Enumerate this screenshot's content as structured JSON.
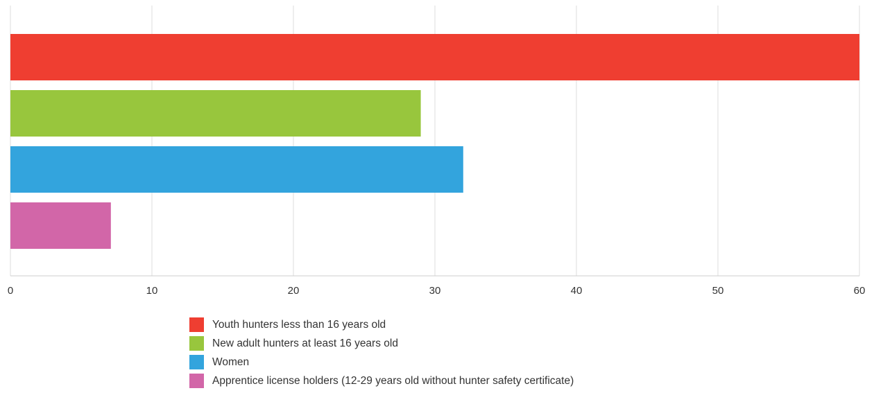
{
  "chart_data": {
    "type": "bar",
    "orientation": "horizontal",
    "title": "",
    "xlabel": "",
    "ylabel": "",
    "xlim": [
      0,
      60
    ],
    "x_ticks": [
      "0",
      "10",
      "20",
      "30",
      "40",
      "50",
      "60"
    ],
    "grid": true,
    "legend_position": "bottom",
    "series": [
      {
        "name": "Youth hunters less than 16 years old",
        "value": 60,
        "color": "#ef3e31"
      },
      {
        "name": "New adult hunters at least 16 years old",
        "value": 29,
        "color": "#98c63d"
      },
      {
        "name": "Women",
        "value": 32,
        "color": "#33a4dd"
      },
      {
        "name": "Apprentice license holders (12-29 years old without hunter safety certificate)",
        "value": 7.1,
        "color": "#d266a8"
      }
    ]
  }
}
